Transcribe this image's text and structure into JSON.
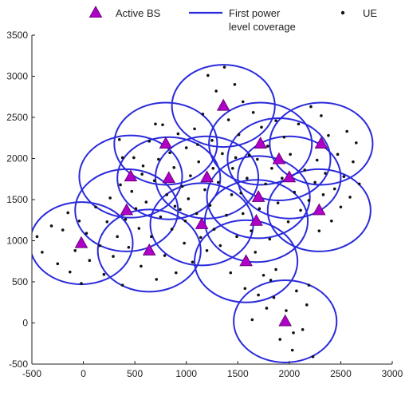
{
  "chart_data": {
    "type": "scatter",
    "title": "",
    "xlabel": "",
    "ylabel": "",
    "xlim": [
      -500,
      3000
    ],
    "ylim": [
      -500,
      3500
    ],
    "xticks": [
      -500,
      0,
      500,
      1000,
      1500,
      2000,
      2500,
      3000
    ],
    "yticks": [
      -500,
      0,
      500,
      1000,
      1500,
      2000,
      2500,
      3000,
      3500
    ],
    "grid": false,
    "legend": {
      "placement": "top",
      "entries": [
        {
          "key": "bs",
          "label": "Active BS",
          "lines": [
            "Active BS"
          ],
          "marker": "triangle",
          "color": "#b000c8"
        },
        {
          "key": "coverage",
          "label": "First power level coverage",
          "lines": [
            "First power",
            "level coverage"
          ],
          "marker": "line",
          "color": "#2a2adc"
        },
        {
          "key": "ue",
          "label": "UE",
          "lines": [
            "UE"
          ],
          "marker": "dot",
          "color": "#111111"
        }
      ]
    },
    "coverage_radius": 500,
    "colors": {
      "bs": "#b000c8",
      "coverage": "#2a2adc",
      "ue": "#111111",
      "axis": "#222222"
    },
    "series": [
      {
        "name": "Active BS",
        "points": [
          [
            -20,
            970
          ],
          [
            640,
            880
          ],
          [
            420,
            1370
          ],
          [
            460,
            1780
          ],
          [
            800,
            2180
          ],
          [
            830,
            1760
          ],
          [
            1200,
            1770
          ],
          [
            1150,
            1200
          ],
          [
            1360,
            2640
          ],
          [
            1700,
            1530
          ],
          [
            1680,
            1240
          ],
          [
            1580,
            750
          ],
          [
            1720,
            2180
          ],
          [
            1900,
            1990
          ],
          [
            2000,
            1770
          ],
          [
            2310,
            2180
          ],
          [
            2290,
            1370
          ],
          [
            1960,
            20
          ]
        ]
      },
      {
        "name": "UE",
        "points": [
          [
            -450,
            1050
          ],
          [
            -400,
            860
          ],
          [
            -310,
            1180
          ],
          [
            -250,
            720
          ],
          [
            -200,
            1130
          ],
          [
            -150,
            1340
          ],
          [
            -130,
            620
          ],
          [
            -80,
            880
          ],
          [
            -40,
            1240
          ],
          [
            -20,
            480
          ],
          [
            30,
            1090
          ],
          [
            60,
            760
          ],
          [
            120,
            1410
          ],
          [
            160,
            940
          ],
          [
            200,
            590
          ],
          [
            230,
            1230
          ],
          [
            260,
            1520
          ],
          [
            290,
            810
          ],
          [
            330,
            1050
          ],
          [
            360,
            1680
          ],
          [
            380,
            460
          ],
          [
            410,
            1260
          ],
          [
            440,
            920
          ],
          [
            470,
            1600
          ],
          [
            490,
            2010
          ],
          [
            510,
            1390
          ],
          [
            540,
            1150
          ],
          [
            560,
            690
          ],
          [
            580,
            1910
          ],
          [
            610,
            1470
          ],
          [
            640,
            2210
          ],
          [
            660,
            1050
          ],
          [
            690,
            1730
          ],
          [
            710,
            530
          ],
          [
            730,
            1990
          ],
          [
            750,
            1290
          ],
          [
            770,
            2410
          ],
          [
            790,
            820
          ],
          [
            810,
            1560
          ],
          [
            840,
            2070
          ],
          [
            860,
            1140
          ],
          [
            880,
            1890
          ],
          [
            900,
            610
          ],
          [
            920,
            2300
          ],
          [
            940,
            1380
          ],
          [
            960,
            1660
          ],
          [
            980,
            970
          ],
          [
            1000,
            2130
          ],
          [
            1020,
            1510
          ],
          [
            1040,
            1790
          ],
          [
            1060,
            740
          ],
          [
            1080,
            2360
          ],
          [
            1100,
            1330
          ],
          [
            1120,
            1960
          ],
          [
            1140,
            1040
          ],
          [
            1160,
            2540
          ],
          [
            1180,
            1620
          ],
          [
            1200,
            880
          ],
          [
            1210,
            3010
          ],
          [
            1230,
            1430
          ],
          [
            1250,
            2220
          ],
          [
            1270,
            1140
          ],
          [
            1290,
            2820
          ],
          [
            1310,
            1710
          ],
          [
            1330,
            940
          ],
          [
            1350,
            2060
          ],
          [
            1370,
            3110
          ],
          [
            1390,
            1310
          ],
          [
            1410,
            2470
          ],
          [
            1430,
            610
          ],
          [
            1450,
            1880
          ],
          [
            1470,
            2900
          ],
          [
            1490,
            1050
          ],
          [
            1510,
            2290
          ],
          [
            1530,
            1580
          ],
          [
            1550,
            2690
          ],
          [
            1570,
            420
          ],
          [
            1590,
            1760
          ],
          [
            1610,
            2040
          ],
          [
            1630,
            1120
          ],
          [
            1650,
            2560
          ],
          [
            1670,
            860
          ],
          [
            1690,
            1990
          ],
          [
            1710,
            1390
          ],
          [
            1730,
            2380
          ],
          [
            1750,
            580
          ],
          [
            1770,
            1690
          ],
          [
            1790,
            2150
          ],
          [
            1810,
            1020
          ],
          [
            1830,
            1880
          ],
          [
            1850,
            310
          ],
          [
            1870,
            2460
          ],
          [
            1890,
            1460
          ],
          [
            1910,
            -200
          ],
          [
            1930,
            1760
          ],
          [
            1950,
            2260
          ],
          [
            1970,
            150
          ],
          [
            1990,
            1230
          ],
          [
            2010,
            2050
          ],
          [
            2030,
            -330
          ],
          [
            2050,
            1590
          ],
          [
            2070,
            390
          ],
          [
            2090,
            2420
          ],
          [
            2110,
            1370
          ],
          [
            2130,
            -80
          ],
          [
            2150,
            1860
          ],
          [
            2170,
            220
          ],
          [
            2190,
            1490
          ],
          [
            2210,
            2630
          ],
          [
            2230,
            -410
          ],
          [
            2250,
            1710
          ],
          [
            2270,
            1980
          ],
          [
            2290,
            1120
          ],
          [
            2310,
            2520
          ],
          [
            2330,
            1560
          ],
          [
            2350,
            1820
          ],
          [
            2380,
            2280
          ],
          [
            2410,
            1240
          ],
          [
            2440,
            1630
          ],
          [
            2470,
            2050
          ],
          [
            2500,
            1410
          ],
          [
            2530,
            1780
          ],
          [
            2560,
            2330
          ],
          [
            2590,
            1530
          ],
          [
            2620,
            1960
          ],
          [
            2650,
            2190
          ],
          [
            2680,
            1690
          ],
          [
            1870,
            650
          ],
          [
            1780,
            180
          ],
          [
            1640,
            40
          ],
          [
            2040,
            -120
          ],
          [
            1820,
            520
          ],
          [
            2190,
            460
          ],
          [
            1700,
            340
          ],
          [
            1550,
            1330
          ],
          [
            1440,
            1560
          ],
          [
            990,
            1240
          ],
          [
            890,
            1420
          ],
          [
            570,
            1810
          ],
          [
            380,
            2010
          ],
          [
            350,
            2230
          ],
          [
            700,
            2420
          ],
          [
            1260,
            1880
          ],
          [
            1480,
            2010
          ],
          [
            1110,
            2170
          ]
        ]
      }
    ]
  }
}
